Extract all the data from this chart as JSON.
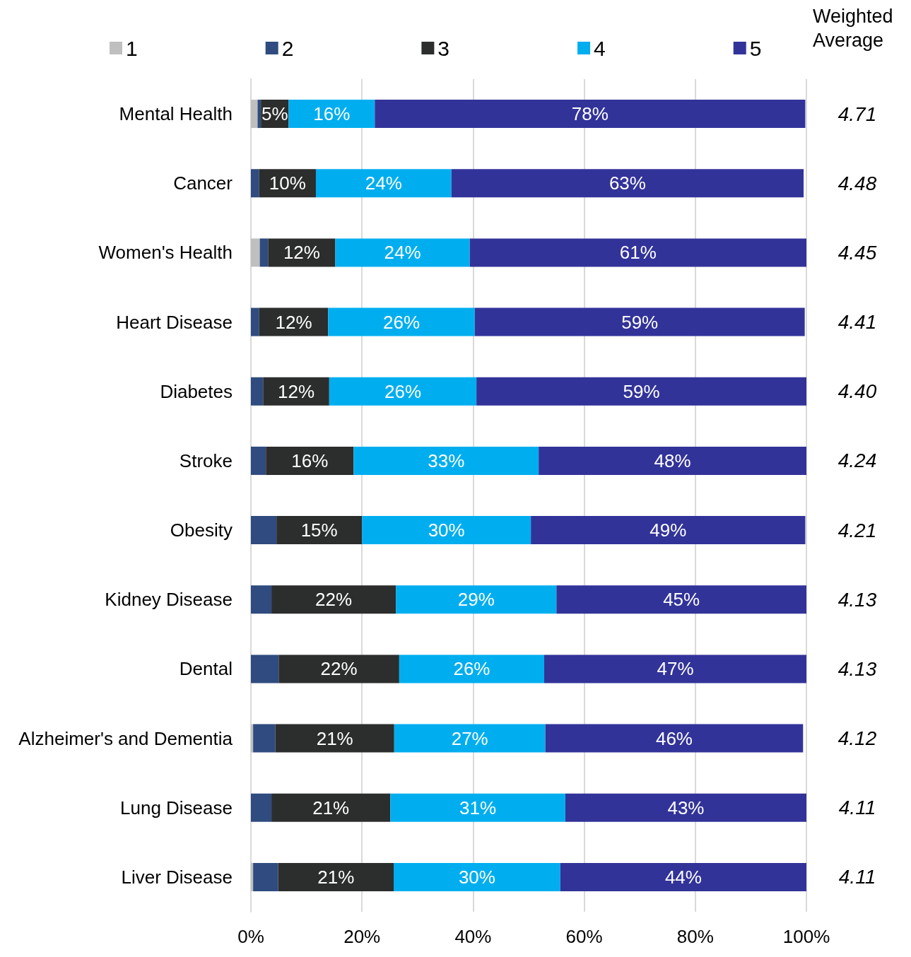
{
  "chart_data": {
    "type": "bar",
    "orientation": "horizontal",
    "stacked": true,
    "categories": [
      "Mental Health",
      "Cancer",
      "Women's Health",
      "Heart Disease",
      "Diabetes",
      "Stroke",
      "Obesity",
      "Kidney Disease",
      "Dental",
      "Alzheimer's and Dementia",
      "Lung Disease",
      "Liver Disease"
    ],
    "series": [
      {
        "name": "1",
        "color": "#bfbfbf",
        "values": [
          1.2,
          0,
          1.6,
          0,
          0,
          0,
          0,
          0,
          0,
          0.4,
          0,
          0.4
        ],
        "value_labels": [
          null,
          null,
          null,
          null,
          null,
          null,
          null,
          null,
          null,
          null,
          null,
          null
        ]
      },
      {
        "name": "2",
        "color": "#2f4b7f",
        "values": [
          0.6,
          1.5,
          1.5,
          1.5,
          2.2,
          2.7,
          4.6,
          3.7,
          5.0,
          4.0,
          3.7,
          4.5
        ],
        "value_labels": [
          null,
          null,
          null,
          null,
          null,
          null,
          null,
          null,
          null,
          null,
          null,
          null
        ]
      },
      {
        "name": "3",
        "color": "#2c2d2d",
        "values": [
          5.0,
          10.2,
          12.1,
          12.4,
          11.9,
          15.8,
          15.4,
          22.4,
          21.7,
          21.4,
          21.4,
          20.8
        ],
        "value_labels": [
          "5%",
          "10%",
          "12%",
          "12%",
          "12%",
          "16%",
          "15%",
          "22%",
          "22%",
          "21%",
          "21%",
          "21%"
        ]
      },
      {
        "name": "4",
        "color": "#00aeef",
        "values": [
          15.5,
          24.4,
          24.2,
          26.4,
          26.5,
          33.3,
          30.4,
          28.9,
          26.1,
          27.2,
          31.5,
          30.0
        ],
        "value_labels": [
          "16%",
          "24%",
          "24%",
          "26%",
          "26%",
          "33%",
          "30%",
          "29%",
          "26%",
          "27%",
          "31%",
          "30%"
        ]
      },
      {
        "name": "5",
        "color": "#323399",
        "values": [
          77.5,
          63.4,
          60.6,
          59.4,
          59.4,
          48.2,
          49.4,
          45.0,
          47.2,
          46.4,
          43.4,
          44.3
        ],
        "value_labels": [
          "78%",
          "63%",
          "61%",
          "59%",
          "59%",
          "48%",
          "49%",
          "45%",
          "47%",
          "46%",
          "43%",
          "44%"
        ]
      }
    ],
    "xlim": [
      0,
      100
    ],
    "xticks": [
      {
        "value": 0,
        "label": "0%"
      },
      {
        "value": 20,
        "label": "20%"
      },
      {
        "value": 40,
        "label": "40%"
      },
      {
        "value": 60,
        "label": "60%"
      },
      {
        "value": 80,
        "label": "80%"
      },
      {
        "value": 100,
        "label": "100%"
      }
    ],
    "grid": "x",
    "legend": "top",
    "annotations": [
      "Weighted\nAverage",
      "4.71",
      "4.48",
      "4.45",
      "4.41",
      "4.40",
      "4.24",
      "4.21",
      "4.13",
      "4.13",
      "4.12",
      "4.11",
      "4.11"
    ]
  }
}
